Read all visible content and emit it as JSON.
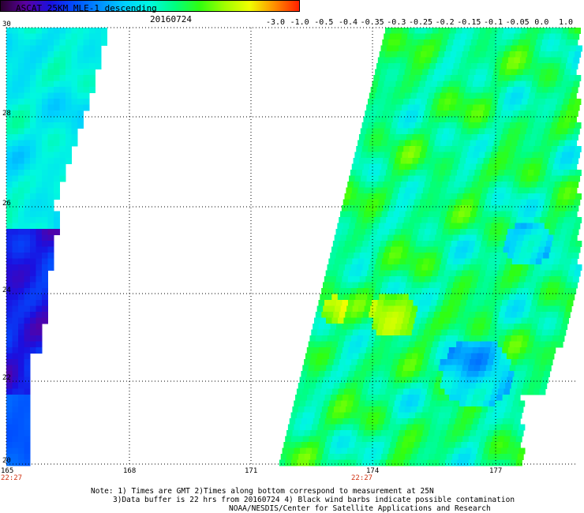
{
  "header": {
    "title": "ASCAT 25KM MLE-1 descending",
    "date": "20160724"
  },
  "colorbar": {
    "ticks": [
      "-3.0",
      "-1.0",
      "-0.5",
      "-0.4",
      "-0.35",
      "-0.3",
      "-0.25",
      "-0.2",
      "-0.15",
      "-0.1",
      "-0.05",
      "0.0",
      "1.0"
    ],
    "colors": [
      "#2a0030",
      "#5a00a0",
      "#1a10e0",
      "#0050ff",
      "#0090ff",
      "#00d0ff",
      "#00f8e0",
      "#00ff80",
      "#30ff10",
      "#a0ff00",
      "#f0ff00",
      "#ff9000",
      "#ff2000"
    ]
  },
  "axes": {
    "lon_labels": [
      "165",
      "168",
      "171",
      "174",
      "177"
    ],
    "lat_labels": [
      "30",
      "28",
      "26",
      "24",
      "22",
      "20"
    ],
    "time_labels": [
      "22:27",
      "22:27"
    ]
  },
  "notes": {
    "line1": "Note: 1) Times are GMT 2)Times along bottom correspond to measurement at 25N",
    "line2": "3)Data buffer is 22 hrs from 20160724 4) Black wind barbs indicate possible contamination",
    "line3": "NOAA/NESDIS/Center for Satellite Applications and Research"
  }
}
